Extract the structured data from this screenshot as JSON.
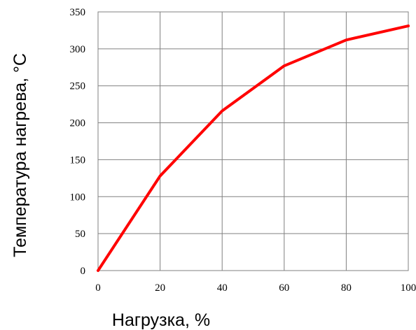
{
  "chart_data": {
    "type": "line",
    "title": "",
    "xlabel": "Нагрузка, %",
    "ylabel": "Температура нагрева, °С",
    "x": [
      0,
      20,
      40,
      60,
      80,
      100
    ],
    "series": [
      {
        "values": [
          0,
          128,
          216,
          277,
          312,
          331
        ],
        "color": "#ff0000"
      }
    ],
    "xlim": [
      0,
      100
    ],
    "ylim": [
      0,
      350
    ],
    "x_ticks": [
      0,
      20,
      40,
      60,
      80,
      100
    ],
    "y_ticks": [
      0,
      50,
      100,
      150,
      200,
      250,
      300,
      350
    ],
    "grid": true,
    "legend": "none"
  }
}
